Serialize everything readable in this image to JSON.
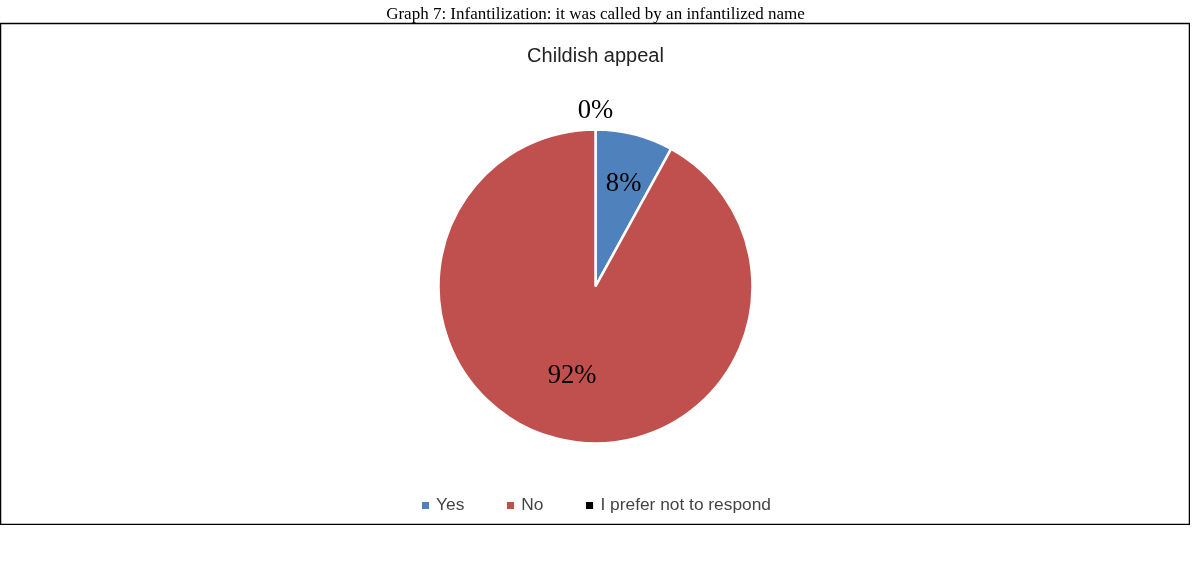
{
  "chart_data": {
    "type": "pie",
    "title": "Graph 7: Infantilization: it was called by an infantilized name",
    "subtitle": "Childish appeal",
    "categories": [
      "Yes",
      "No",
      "I prefer not to respond"
    ],
    "values": [
      8,
      92,
      0
    ],
    "colors": [
      "#4f81bd",
      "#c0504d",
      "#000000"
    ],
    "value_labels": [
      "8%",
      "92%",
      "0%"
    ],
    "legend": "bottom"
  }
}
